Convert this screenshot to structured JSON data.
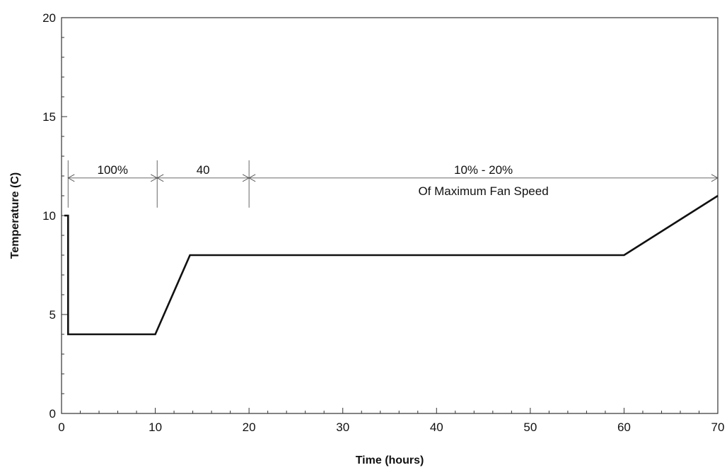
{
  "chart_data": {
    "type": "line",
    "xlabel": "Time (hours)",
    "ylabel": "Temperature (C)",
    "xlim": [
      0,
      70
    ],
    "ylim": [
      0,
      20
    ],
    "xticks": [
      0,
      10,
      20,
      30,
      40,
      50,
      60,
      70
    ],
    "yticks": [
      0,
      5,
      10,
      15,
      20
    ],
    "grid": false,
    "series": [
      {
        "x": [
          0.3,
          0.7,
          0.7,
          10.0,
          13.7,
          60.0,
          70.0
        ],
        "y": [
          10,
          10,
          4,
          4,
          8,
          8,
          11
        ]
      }
    ],
    "annotations": [
      {
        "label": "100%",
        "x_start": 0.7,
        "x_end": 10.2
      },
      {
        "label": "40",
        "x_start": 10.2,
        "x_end": 20.0
      },
      {
        "label": "10% - 20%",
        "sublabel": "Of Maximum Fan Speed",
        "x_start": 20.0,
        "x_end": 70.0
      }
    ],
    "annotation_y": 11.9,
    "colors": {
      "line": "#111111",
      "frame": "#333333",
      "annotation": "#555555"
    }
  }
}
